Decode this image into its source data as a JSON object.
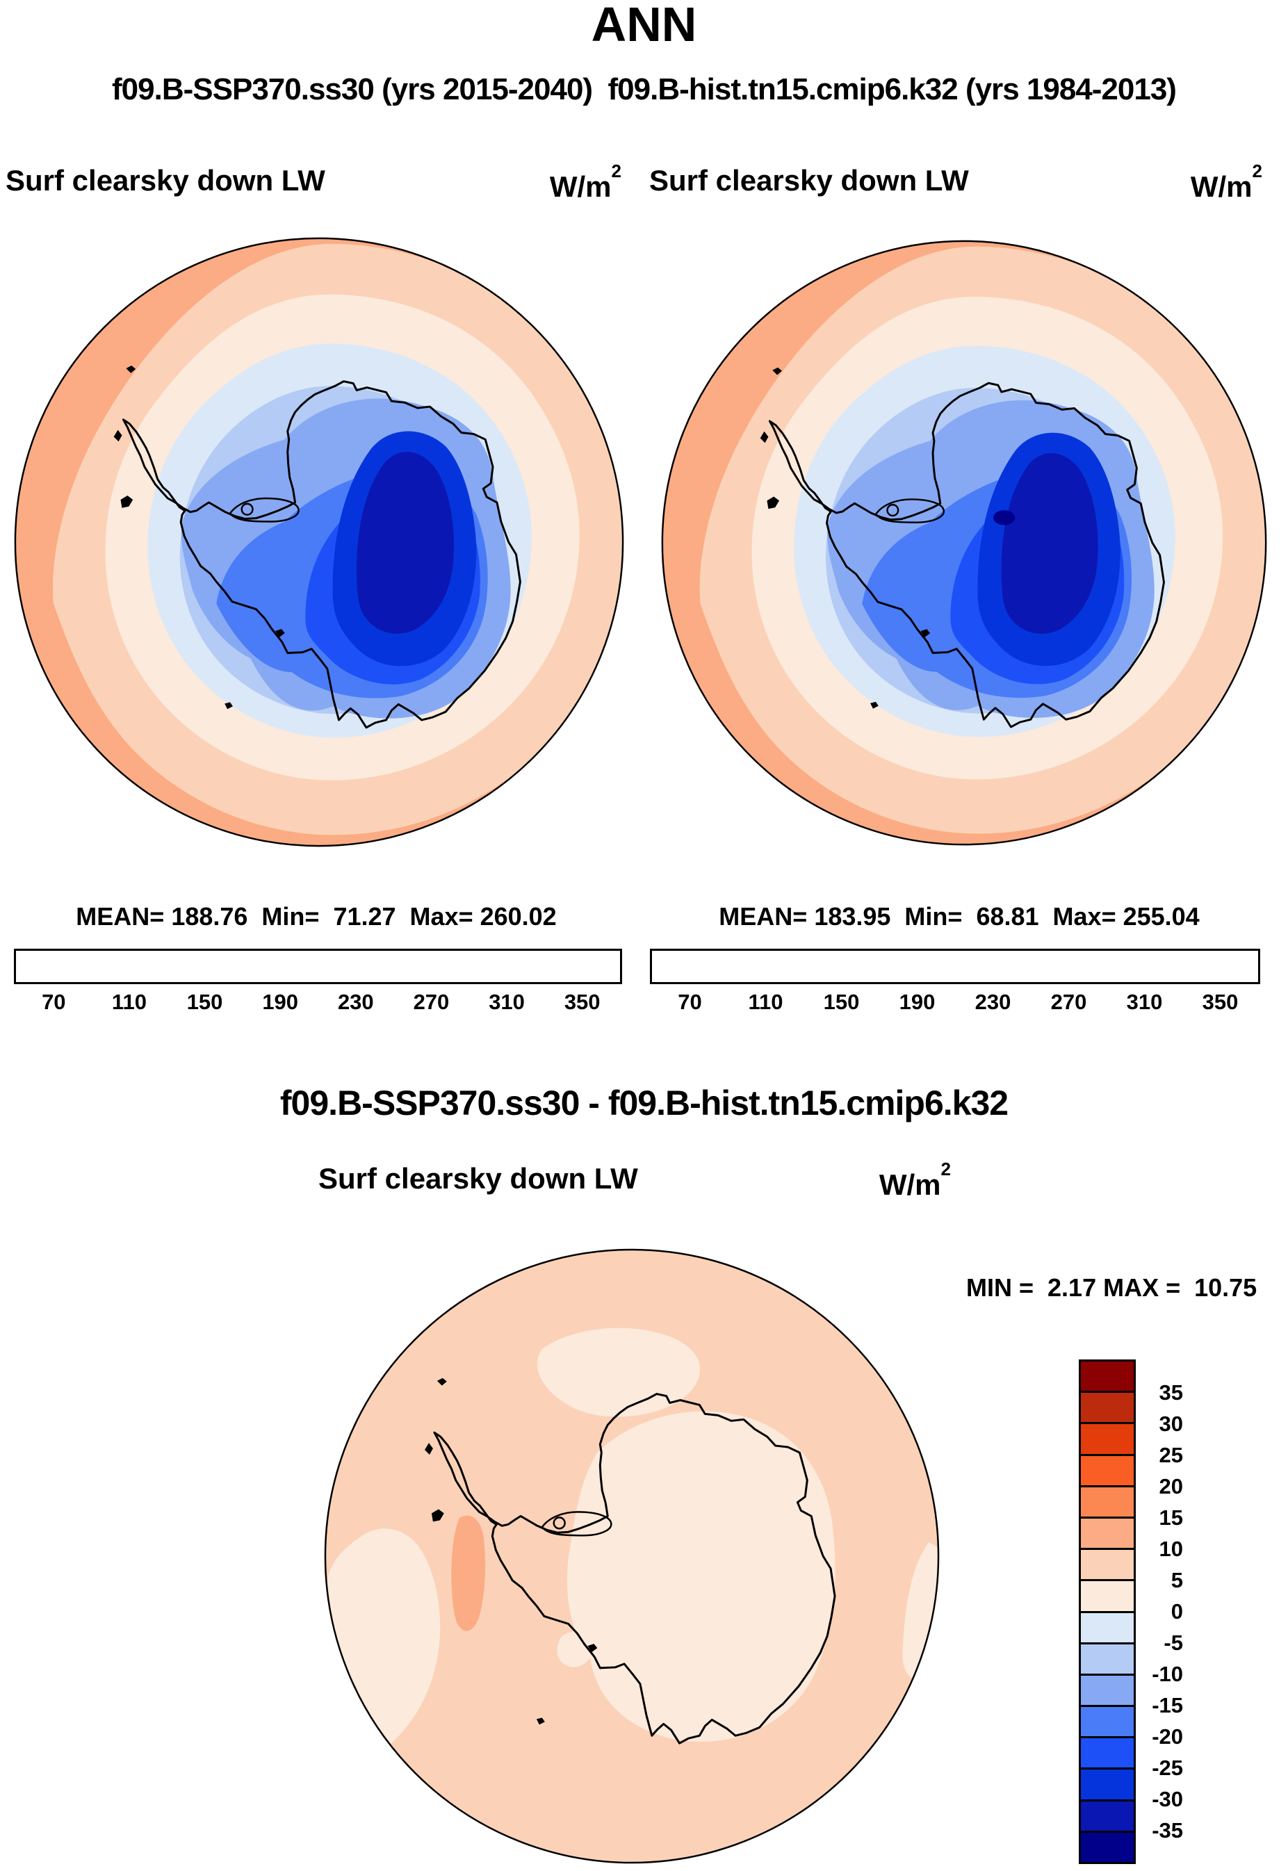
{
  "header": {
    "title": "ANN",
    "subtitle": "f09.B-SSP370.ss30 (yrs 2015-2040)  f09.B-hist.tn15.cmip6.k32 (yrs 1984-2013)"
  },
  "panels": [
    {
      "field_label": "Surf clearsky down LW",
      "units_base": "W/m",
      "units_exp": "2",
      "stats": "MEAN= 188.76  Min=  71.27  Max= 260.02"
    },
    {
      "field_label": "Surf clearsky down LW",
      "units_base": "W/m",
      "units_exp": "2",
      "stats": "MEAN= 183.95  Min=  68.81  Max= 255.04"
    }
  ],
  "diff": {
    "title": "f09.B-SSP370.ss30 - f09.B-hist.tn15.cmip6.k32",
    "field_label": "Surf clearsky down LW",
    "units_base": "W/m",
    "units_exp": "2",
    "minmax": "MIN =  2.17 MAX =  10.75"
  },
  "colorbar": {
    "colors": [
      "#00008b",
      "#0b17b2",
      "#0634dc",
      "#1d51f7",
      "#4a7cf7",
      "#87a9f3",
      "#b3cbf5",
      "#dbe8f7",
      "#fceadc",
      "#fbd2b7",
      "#fbac84",
      "#fb8853",
      "#f95e24",
      "#e33d0c",
      "#bc2b0c",
      "#8b0000"
    ],
    "tick_labels": [
      "70",
      "110",
      "150",
      "190",
      "230",
      "270",
      "310",
      "350"
    ]
  },
  "diff_colorbar": {
    "tick_labels": [
      "35",
      "30",
      "25",
      "20",
      "15",
      "10",
      "5",
      "0",
      "-5",
      "-10",
      "-15",
      "-20",
      "-25",
      "-30",
      "-35"
    ]
  },
  "chart_data": [
    {
      "type": "heatmap",
      "panel": "top-left",
      "title": "Surf clearsky down LW",
      "units": "W/m2",
      "case": "f09.B-SSP370.ss30",
      "years": "2015-2040",
      "projection": "south polar stereographic (Antarctica)",
      "mean": 188.76,
      "min": 71.27,
      "max": 260.02,
      "contour_levels": [
        70,
        90,
        110,
        130,
        150,
        170,
        190,
        210,
        230,
        250,
        270,
        290,
        310,
        330,
        350
      ],
      "palette": "blue-white-red, 16 classes",
      "description": "Antarctic interior in deep blues (~70-150 W/m2), coastal seas pale blues (~150-210), Southern Ocean cream to orange (~210-290, warmest at western rim)"
    },
    {
      "type": "heatmap",
      "panel": "top-right",
      "title": "Surf clearsky down LW",
      "units": "W/m2",
      "case": "f09.B-hist.tn15.cmip6.k32",
      "years": "1984-2013",
      "projection": "south polar stereographic (Antarctica)",
      "mean": 183.95,
      "min": 68.81,
      "max": 255.04,
      "contour_levels": [
        70,
        90,
        110,
        130,
        150,
        170,
        190,
        210,
        230,
        250,
        270,
        290,
        310,
        330,
        350
      ],
      "palette": "blue-white-red, 16 classes",
      "description": "Same pattern as top-left with slightly lower values; small spot below 70 W/m2 on the East Antarctic plateau"
    },
    {
      "type": "heatmap",
      "panel": "bottom-difference",
      "title": "f09.B-SSP370.ss30 - f09.B-hist.tn15.cmip6.k32",
      "field": "Surf clearsky down LW",
      "units": "W/m2",
      "min": 2.17,
      "max": 10.75,
      "contour_levels": [
        -35,
        -30,
        -25,
        -20,
        -15,
        -10,
        -5,
        0,
        5,
        10,
        15,
        20,
        25,
        30,
        35
      ],
      "palette": "blue-white-red, 16 classes, legend vertical",
      "description": "All-positive difference: mostly 5-10 W/m2 (pale orange) over ocean, 0-5 (cream) over the continent and patches of ocean, one 10-15 patch west of the Antarctic Peninsula"
    }
  ]
}
